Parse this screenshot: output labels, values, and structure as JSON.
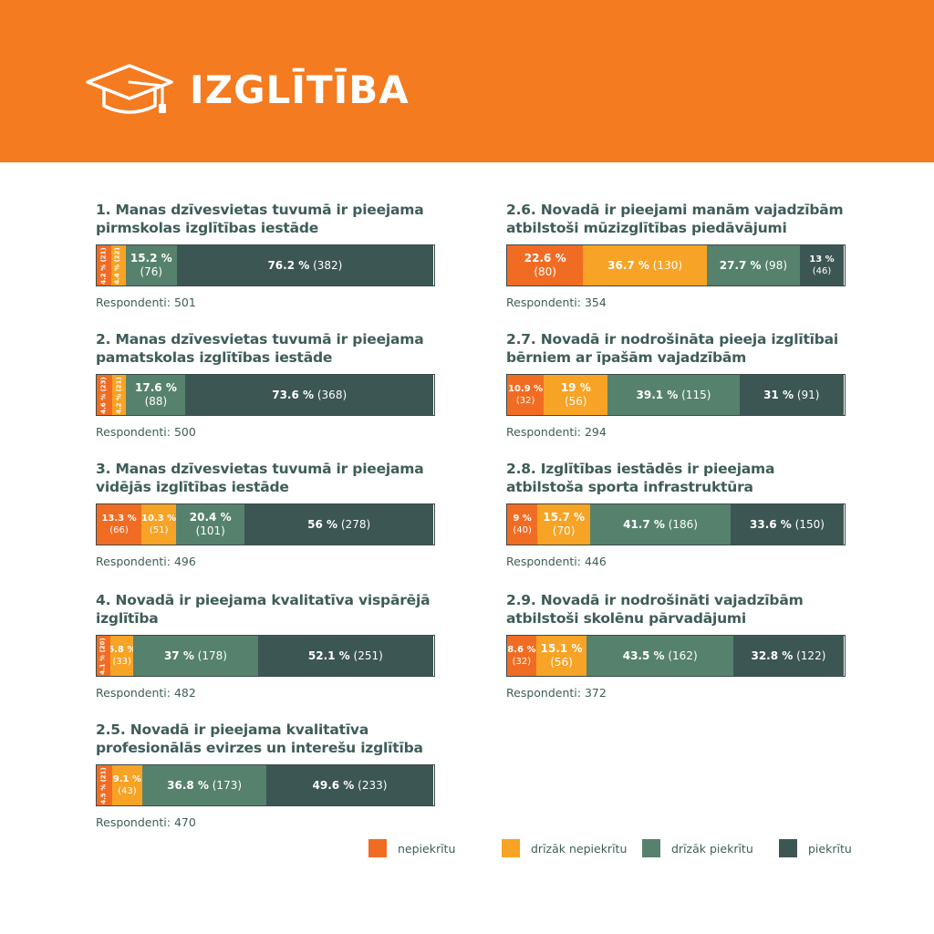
{
  "header": {
    "title": "IZGLĪTĪBA",
    "icon": "graduation-cap-icon",
    "bg_color": "#f47b20"
  },
  "colors": {
    "nepiekritu": "#f16c23",
    "drizak_nepiekritu": "#f7a325",
    "drizak_piekritu": "#56826d",
    "piekritu": "#3c5653"
  },
  "legend": [
    {
      "label": "nepiekrītu",
      "color": "#f16c23"
    },
    {
      "label": "drīzāk nepiekrītu",
      "color": "#f7a325"
    },
    {
      "label": "drīzāk piekrītu",
      "color": "#56826d"
    },
    {
      "label": "piekrītu",
      "color": "#3c5653"
    }
  ],
  "chart_data": [
    {
      "type": "bar",
      "title": "1. Manas dzīvesvietas tuvumā ir pieejama pirmskolas izglītības iestāde",
      "respondents": "Respondenti: 501",
      "categories": [
        "nepiekrītu",
        "drīzāk nepiekrītu",
        "drīzāk piekrītu",
        "piekrītu"
      ],
      "values": [
        4.2,
        4.4,
        15.2,
        76.2
      ],
      "labels": [
        "4.2 %",
        "4.4 %",
        "15.2 %",
        "76.2 %"
      ],
      "counts": [
        "(21)",
        "(22)",
        "(76)",
        "(382)"
      ]
    },
    {
      "type": "bar",
      "title": "2. Manas dzīvesvietas tuvumā ir pieejama pamatskolas izglītības iestāde",
      "respondents": "Respondenti: 500",
      "categories": [
        "nepiekrītu",
        "drīzāk nepiekrītu",
        "drīzāk piekrītu",
        "piekrītu"
      ],
      "values": [
        4.6,
        4.2,
        17.6,
        73.6
      ],
      "labels": [
        "4.6 %",
        "4.2 %",
        "17.6 %",
        "73.6 %"
      ],
      "counts": [
        "(23)",
        "(21)",
        "(88)",
        "(368)"
      ]
    },
    {
      "type": "bar",
      "title": "3. Manas dzīvesvietas tuvumā ir pieejama vidējās izglītības iestāde",
      "respondents": "Respondenti: 496",
      "categories": [
        "nepiekrītu",
        "drīzāk nepiekrītu",
        "drīzāk piekrītu",
        "piekrītu"
      ],
      "values": [
        13.3,
        10.3,
        20.4,
        56
      ],
      "labels": [
        "13.3 %",
        "10.3 %",
        "20.4 %",
        "56 %"
      ],
      "counts": [
        "(66)",
        "(51)",
        "(101)",
        "(278)"
      ]
    },
    {
      "type": "bar",
      "title": "4. Novadā ir pieejama kvalitatīva vispārējā izglītība",
      "respondents": "Respondenti: 482",
      "categories": [
        "nepiekrītu",
        "drīzāk nepiekrītu",
        "drīzāk piekrītu",
        "piekrītu"
      ],
      "values": [
        4.1,
        6.8,
        37,
        52.1
      ],
      "labels": [
        "4.1 %",
        "6.8 %",
        "37 %",
        "52.1 %"
      ],
      "counts": [
        "(20)",
        "(33)",
        "(178)",
        "(251)"
      ]
    },
    {
      "type": "bar",
      "title": "2.5. Novadā ir pieejama kvalitatīva profesionālās evirzes un interešu izglītība",
      "respondents": "Respondenti: 470",
      "categories": [
        "nepiekrītu",
        "drīzāk nepiekrītu",
        "drīzāk piekrītu",
        "piekrītu"
      ],
      "values": [
        4.5,
        9.1,
        36.8,
        49.6
      ],
      "labels": [
        "4.5 %",
        "9.1 %",
        "36.8 %",
        "49.6 %"
      ],
      "counts": [
        "(21)",
        "(43)",
        "(173)",
        "(233)"
      ]
    },
    {
      "type": "bar",
      "title": "2.6. Novadā ir pieejami manām vajadzībām atbilstoši mūzizglītības piedāvājumi",
      "respondents": "Respondenti: 354",
      "categories": [
        "nepiekrītu",
        "drīzāk nepiekrītu",
        "drīzāk piekrītu",
        "piekrītu"
      ],
      "values": [
        22.6,
        36.7,
        27.7,
        13
      ],
      "labels": [
        "22.6 %",
        "36.7 %",
        "27.7 %",
        "13 %"
      ],
      "counts": [
        "(80)",
        "(130)",
        "(98)",
        "(46)"
      ]
    },
    {
      "type": "bar",
      "title": "2.7. Novadā ir nodrošināta pieeja izglītībai bērniem ar īpašām vajadzībām",
      "respondents": "Respondenti: 294",
      "categories": [
        "nepiekrītu",
        "drīzāk nepiekrītu",
        "drīzāk piekrītu",
        "piekrītu"
      ],
      "values": [
        10.9,
        19,
        39.1,
        31
      ],
      "labels": [
        "10.9 %",
        "19 %",
        "39.1 %",
        "31 %"
      ],
      "counts": [
        "(32)",
        "(56)",
        "(115)",
        "(91)"
      ]
    },
    {
      "type": "bar",
      "title": "2.8. Izglītības iestādēs ir pieejama atbilstoša sporta infrastruktūra",
      "respondents": "Respondenti: 446",
      "categories": [
        "nepiekrītu",
        "drīzāk nepiekrītu",
        "drīzāk piekrītu",
        "piekrītu"
      ],
      "values": [
        9,
        15.7,
        41.7,
        33.6
      ],
      "labels": [
        "9 %",
        "15.7 %",
        "41.7 %",
        "33.6 %"
      ],
      "counts": [
        "(40)",
        "(70)",
        "(186)",
        "(150)"
      ]
    },
    {
      "type": "bar",
      "title": "2.9. Novadā ir nodrošināti vajadzībām atbilstoši skolēnu pārvadājumi",
      "respondents": "Respondenti: 372",
      "categories": [
        "nepiekrītu",
        "drīzāk nepiekrītu",
        "drīzāk piekrītu",
        "piekrītu"
      ],
      "values": [
        8.6,
        15.1,
        43.5,
        32.8
      ],
      "labels": [
        "8.6 %",
        "15.1 %",
        "43.5 %",
        "32.8 %"
      ],
      "counts": [
        "(32)",
        "(56)",
        "(162)",
        "(122)"
      ]
    }
  ]
}
